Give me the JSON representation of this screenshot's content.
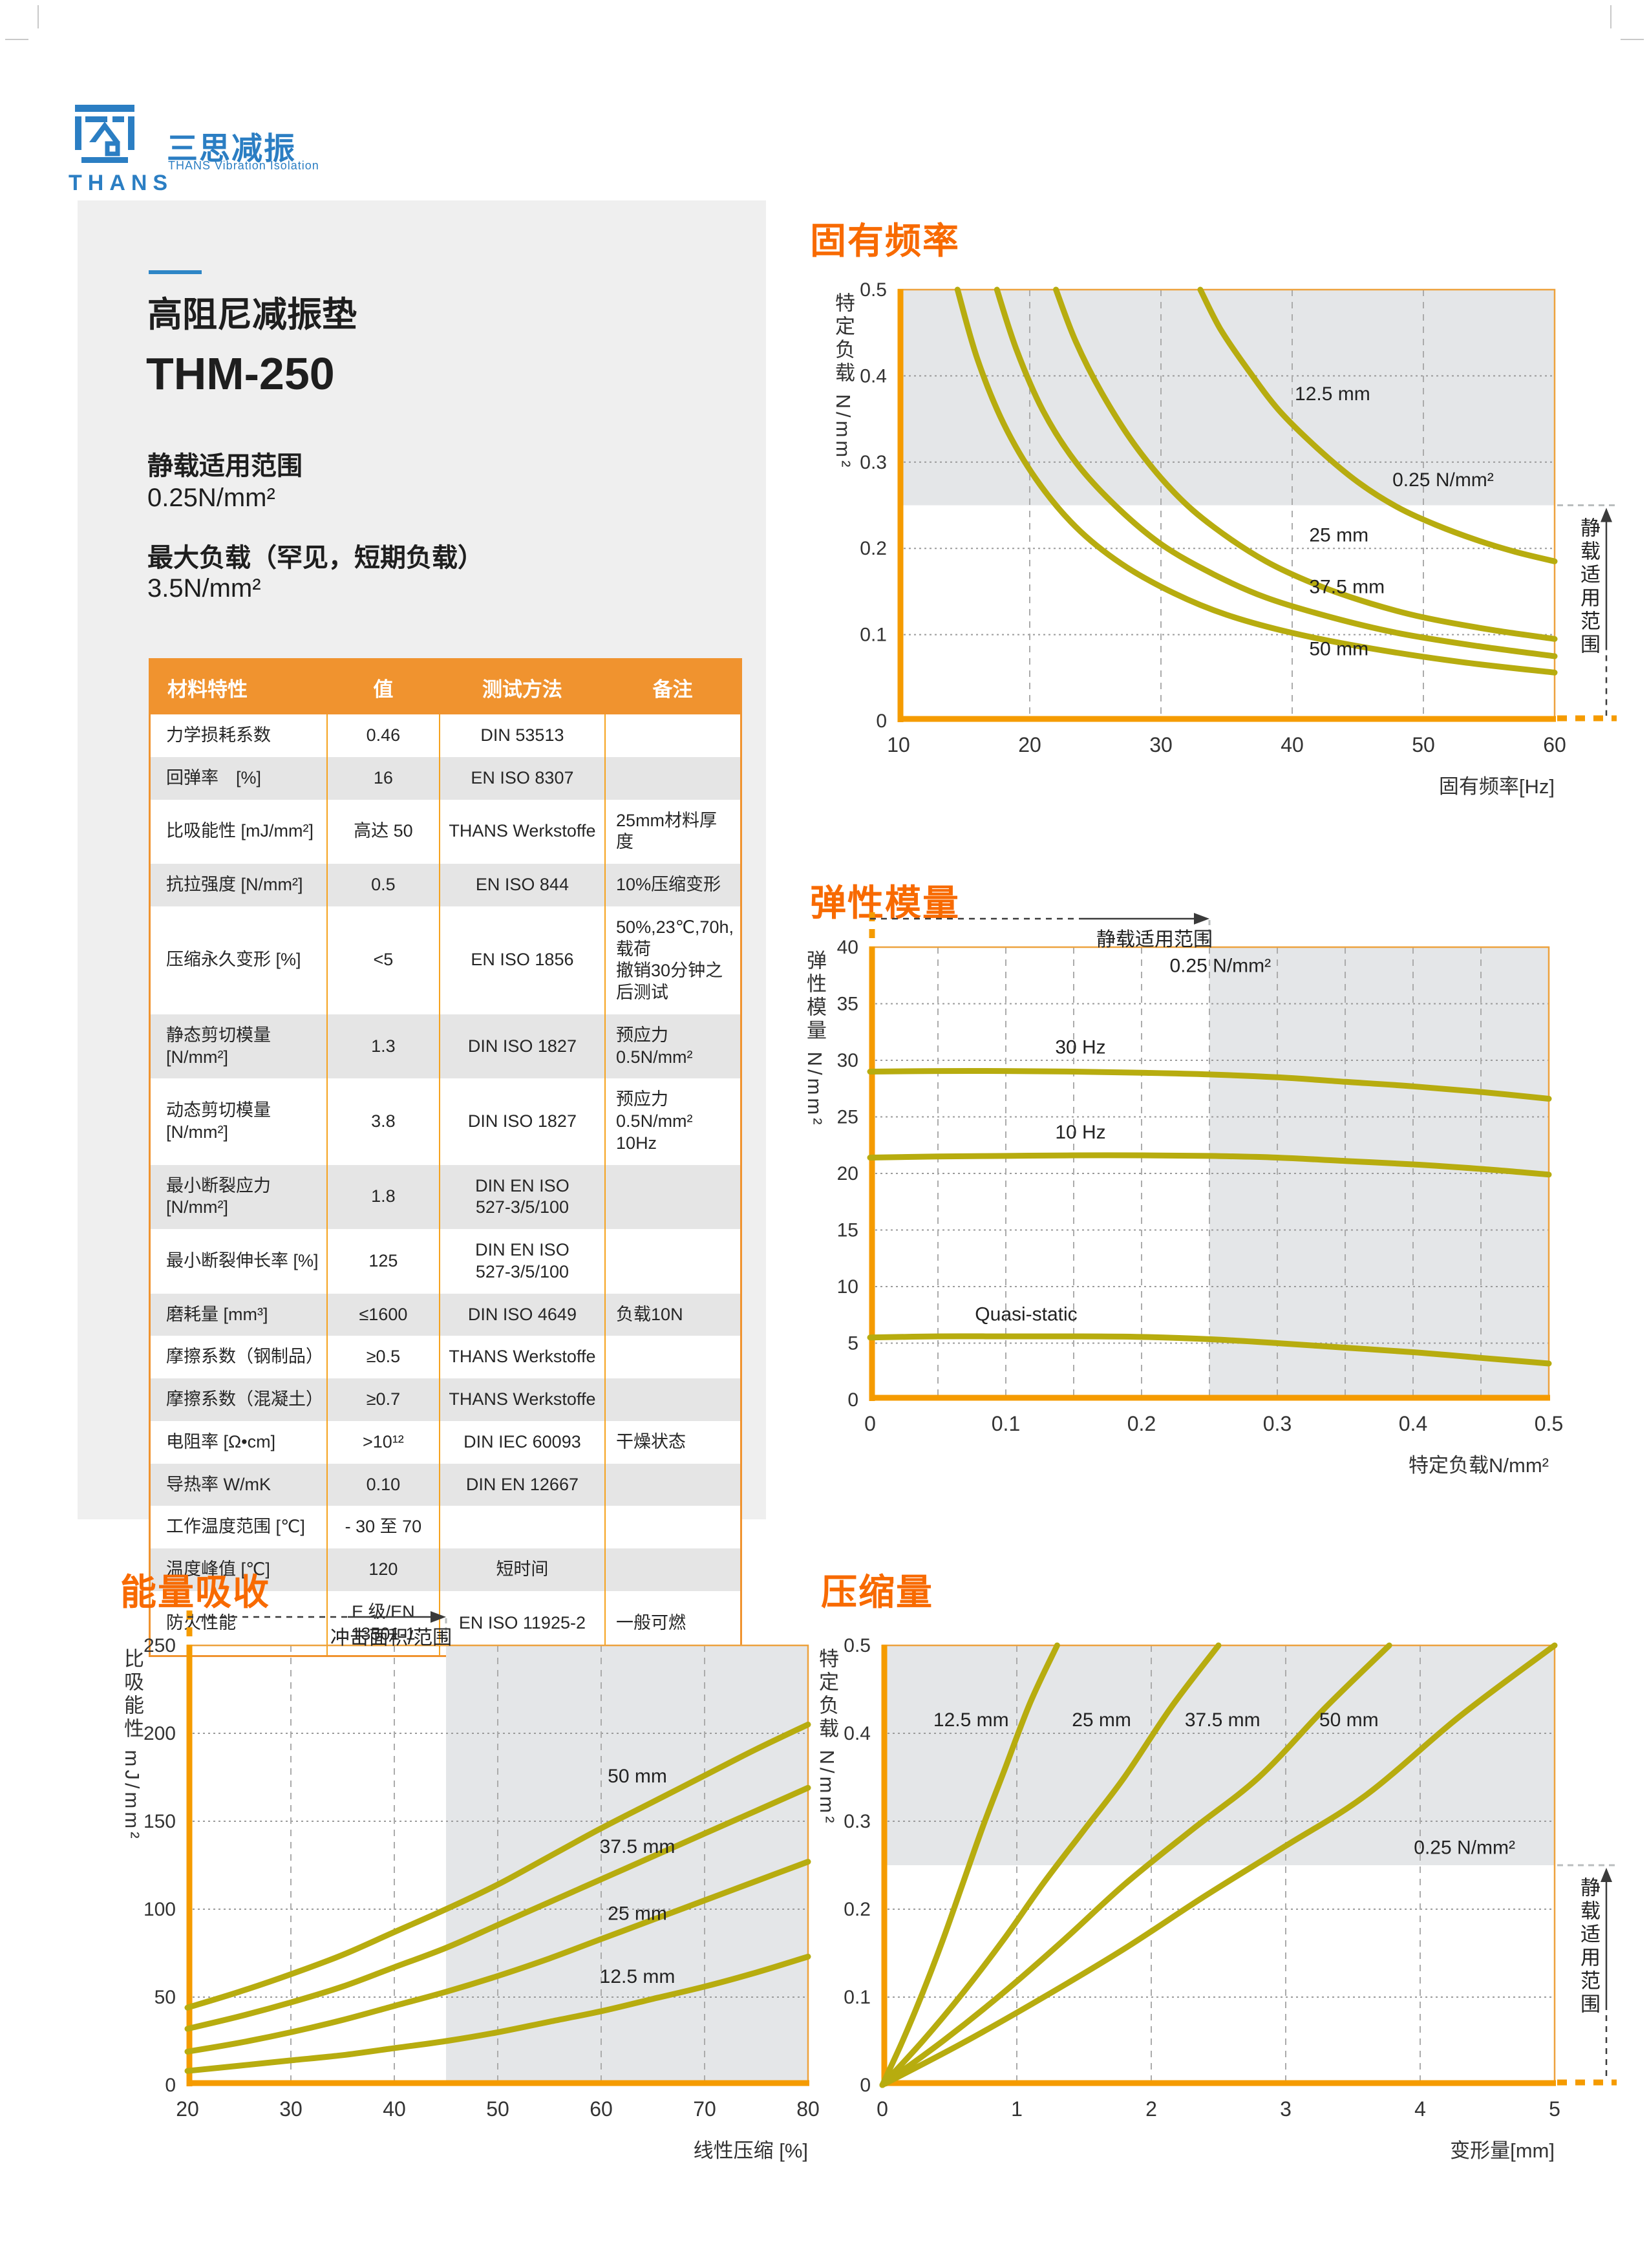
{
  "logo": {
    "brand": "THANS",
    "cn": "三思减振",
    "en": "THANS Vibration Isolation"
  },
  "product": {
    "category": "高阻尼减振垫",
    "model": "THM-250",
    "static_range_label": "静载适用范围",
    "static_range_value": "0.25N/mm²",
    "max_load_label": "最大负载（罕见，短期负载）",
    "max_load_value": "3.5N/mm²"
  },
  "colors": {
    "accent_orange": "#F86A00",
    "table_header_orange": "#F0932F",
    "axis_orange": "#F59B00",
    "curve_olive": "#B7AC0F",
    "shade_gray": "#E4E6E8",
    "logo_blue": "#2B7EC3"
  },
  "table": {
    "headers": [
      "材料特性",
      "值",
      "测试方法",
      "备注"
    ],
    "rows": [
      [
        "力学损耗系数",
        "0.46",
        "DIN 53513",
        ""
      ],
      [
        "回弹率　[%]",
        "16",
        "EN ISO 8307",
        ""
      ],
      [
        "比吸能性 [mJ/mm²]",
        "高达 50",
        "THANS Werkstoffe",
        "25mm材料厚度"
      ],
      [
        "抗拉强度 [N/mm²]",
        "0.5",
        "EN ISO 844",
        "10%压缩变形"
      ],
      [
        "压缩永久变形 [%]",
        "<5",
        "EN ISO 1856",
        "50%,23℃,70h,载荷\n撤销30分钟之后测试"
      ],
      [
        "静态剪切模量 [N/mm²]",
        "1.3",
        "DIN ISO 1827",
        "预应力0.5N/mm²"
      ],
      [
        "动态剪切模量 [N/mm²]",
        "3.8",
        "DIN ISO 1827",
        "预应力0.5N/mm²\n10Hz"
      ],
      [
        "最小断裂应力 [N/mm²]",
        "1.8",
        "DIN EN ISO\n527-3/5/100",
        ""
      ],
      [
        "最小断裂伸长率 [%]",
        "125",
        "DIN EN ISO\n527-3/5/100",
        ""
      ],
      [
        "磨耗量 [mm³]",
        "≤1600",
        "DIN ISO 4649",
        "负载10N"
      ],
      [
        "摩擦系数（钢制品）",
        "≥0.5",
        "THANS Werkstoffe",
        ""
      ],
      [
        "摩擦系数（混凝土）",
        "≥0.7",
        "THANS Werkstoffe",
        ""
      ],
      [
        "电阻率 [Ω•cm]",
        ">10¹²",
        "DIN IEC 60093",
        "干燥状态"
      ],
      [
        "导热率 W/mK",
        "0.10",
        "DIN EN 12667",
        ""
      ],
      [
        "工作温度范围 [℃]",
        "- 30 至 70",
        "",
        ""
      ],
      [
        "温度峰值 [℃]",
        "120",
        "短时间",
        ""
      ],
      [
        "防火性能",
        "E 级/EN\n13501-1",
        "EN ISO 11925-2",
        "一般可燃"
      ]
    ]
  },
  "chart_data": [
    {
      "id": "natural-frequency",
      "type": "line",
      "title": "固有频率",
      "xlabel": "固有频率[Hz]",
      "ylabel": "特定负载 N/mm²",
      "xlim": [
        10,
        60
      ],
      "ylim": [
        0,
        0.5
      ],
      "xticks": [
        10,
        20,
        30,
        40,
        50,
        60
      ],
      "yticks": [
        0,
        0.1,
        0.2,
        0.3,
        0.4,
        0.5
      ],
      "grid_vx": [
        20,
        30,
        40,
        50
      ],
      "grid_hy": [
        0.1,
        0.2,
        0.3,
        0.4
      ],
      "shade": {
        "x0": 10,
        "x1": 60,
        "y0": 0.25,
        "y1": 0.5
      },
      "boundary_label": {
        "text": "0.25 N/mm²",
        "x": 51.5,
        "y": 0.272,
        "anchor": "middle"
      },
      "range_annotation": {
        "side": "right",
        "text": "静载适用范围",
        "from": 0,
        "to": 0.25
      },
      "series": [
        {
          "name": "12.5 mm",
          "label_x": 40.2,
          "label_y": 0.372,
          "label_anchor": "start",
          "points": [
            [
              33,
              0.5
            ],
            [
              34.5,
              0.455
            ],
            [
              36.5,
              0.41
            ],
            [
              39,
              0.36
            ],
            [
              42,
              0.315
            ],
            [
              45,
              0.277
            ],
            [
              48,
              0.248
            ],
            [
              51,
              0.227
            ],
            [
              54,
              0.21
            ],
            [
              57,
              0.196
            ],
            [
              60,
              0.185
            ]
          ]
        },
        {
          "name": "25 mm",
          "label_x": 41.3,
          "label_y": 0.208,
          "label_anchor": "start",
          "points": [
            [
              22,
              0.5
            ],
            [
              23.5,
              0.44
            ],
            [
              25.5,
              0.38
            ],
            [
              28,
              0.32
            ],
            [
              31,
              0.265
            ],
            [
              34,
              0.225
            ],
            [
              38,
              0.185
            ],
            [
              42,
              0.157
            ],
            [
              46,
              0.136
            ],
            [
              50,
              0.12
            ],
            [
              55,
              0.106
            ],
            [
              60,
              0.095
            ]
          ]
        },
        {
          "name": "37.5 mm",
          "label_x": 41.3,
          "label_y": 0.148,
          "label_anchor": "start",
          "points": [
            [
              17.5,
              0.5
            ],
            [
              19,
              0.43
            ],
            [
              21,
              0.36
            ],
            [
              23.5,
              0.3
            ],
            [
              26.5,
              0.25
            ],
            [
              30,
              0.205
            ],
            [
              34,
              0.17
            ],
            [
              38,
              0.143
            ],
            [
              43,
              0.12
            ],
            [
              48,
              0.102
            ],
            [
              54,
              0.087
            ],
            [
              60,
              0.075
            ]
          ]
        },
        {
          "name": "50 mm",
          "label_x": 41.3,
          "label_y": 0.076,
          "label_anchor": "start",
          "points": [
            [
              14.5,
              0.5
            ],
            [
              16,
              0.42
            ],
            [
              18,
              0.345
            ],
            [
              20.5,
              0.28
            ],
            [
              23.5,
              0.225
            ],
            [
              27,
              0.182
            ],
            [
              31,
              0.148
            ],
            [
              35,
              0.123
            ],
            [
              40,
              0.102
            ],
            [
              46,
              0.084
            ],
            [
              53,
              0.068
            ],
            [
              60,
              0.056
            ]
          ]
        }
      ]
    },
    {
      "id": "elastic-modulus",
      "type": "line",
      "title": "弹性模量",
      "xlabel": "特定负载N/mm²",
      "ylabel": "弹性模量 N/mm²",
      "xlim": [
        0,
        0.5
      ],
      "ylim": [
        0,
        40
      ],
      "xticks": [
        0,
        0.1,
        0.2,
        0.3,
        0.4,
        0.5
      ],
      "yticks": [
        0,
        5,
        10,
        15,
        20,
        25,
        30,
        35,
        40
      ],
      "grid_vx": [
        0.05,
        0.1,
        0.15,
        0.2,
        0.25,
        0.3,
        0.35,
        0.4,
        0.45
      ],
      "grid_hy": [
        5,
        10,
        15,
        20,
        25,
        30,
        35
      ],
      "shade": {
        "x0": 0.25,
        "x1": 0.5,
        "y0": 0,
        "y1": 40
      },
      "boundary_label": {
        "text": "0.25 N/mm²",
        "x": 0.258,
        "y": 37.8,
        "anchor": "middle"
      },
      "range_annotation": {
        "side": "top",
        "text": "静载适用范围",
        "from": 0,
        "to": 0.25
      },
      "series": [
        {
          "name": "30 Hz",
          "label_x": 0.155,
          "label_y": 30.6,
          "label_anchor": "middle",
          "points": [
            [
              0,
              29
            ],
            [
              0.05,
              29.05
            ],
            [
              0.1,
              29.05
            ],
            [
              0.15,
              29
            ],
            [
              0.2,
              28.9
            ],
            [
              0.25,
              28.75
            ],
            [
              0.3,
              28.5
            ],
            [
              0.35,
              28.1
            ],
            [
              0.4,
              27.7
            ],
            [
              0.45,
              27.2
            ],
            [
              0.5,
              26.6
            ]
          ]
        },
        {
          "name": "10 Hz",
          "label_x": 0.155,
          "label_y": 23.1,
          "label_anchor": "middle",
          "points": [
            [
              0,
              21.4
            ],
            [
              0.05,
              21.5
            ],
            [
              0.1,
              21.55
            ],
            [
              0.15,
              21.6
            ],
            [
              0.2,
              21.6
            ],
            [
              0.25,
              21.55
            ],
            [
              0.3,
              21.4
            ],
            [
              0.35,
              21.1
            ],
            [
              0.4,
              20.8
            ],
            [
              0.45,
              20.4
            ],
            [
              0.5,
              19.9
            ]
          ]
        },
        {
          "name": "Quasi-static",
          "label_x": 0.115,
          "label_y": 7.0,
          "label_anchor": "middle",
          "points": [
            [
              0,
              5.5
            ],
            [
              0.05,
              5.6
            ],
            [
              0.1,
              5.6
            ],
            [
              0.15,
              5.6
            ],
            [
              0.2,
              5.55
            ],
            [
              0.25,
              5.35
            ],
            [
              0.3,
              5.0
            ],
            [
              0.35,
              4.6
            ],
            [
              0.4,
              4.2
            ],
            [
              0.45,
              3.7
            ],
            [
              0.5,
              3.2
            ]
          ]
        }
      ]
    },
    {
      "id": "energy-absorption",
      "type": "line",
      "title": "能量吸收",
      "xlabel": "线性压缩 [%]",
      "ylabel": "比吸能性 mJ/mm²",
      "xlim": [
        20,
        80
      ],
      "ylim": [
        0,
        250
      ],
      "xticks": [
        20,
        30,
        40,
        50,
        60,
        70,
        80
      ],
      "yticks": [
        0,
        50,
        100,
        150,
        200,
        250
      ],
      "grid_vx": [
        30,
        40,
        50,
        60,
        70
      ],
      "grid_hy": [
        50,
        100,
        150,
        200
      ],
      "shade": {
        "x0": 45,
        "x1": 80,
        "y0": 0,
        "y1": 250
      },
      "range_annotation": {
        "side": "top",
        "text": "冲击面积/范围",
        "from": 20,
        "to": 45
      },
      "series": [
        {
          "name": "50 mm",
          "label_x": 63.5,
          "label_y": 172,
          "label_anchor": "middle",
          "points": [
            [
              20,
              44
            ],
            [
              25,
              53
            ],
            [
              30,
              63
            ],
            [
              35,
              74
            ],
            [
              40,
              87
            ],
            [
              45,
              100
            ],
            [
              50,
              114
            ],
            [
              55,
              130
            ],
            [
              60,
              146
            ],
            [
              65,
              161
            ],
            [
              70,
              176
            ],
            [
              75,
              191
            ],
            [
              80,
              205
            ]
          ]
        },
        {
          "name": "37.5 mm",
          "label_x": 63.5,
          "label_y": 132,
          "label_anchor": "middle",
          "points": [
            [
              20,
              32
            ],
            [
              25,
              39
            ],
            [
              30,
              47
            ],
            [
              35,
              56
            ],
            [
              40,
              67
            ],
            [
              45,
              78
            ],
            [
              50,
              91
            ],
            [
              55,
              104
            ],
            [
              60,
              117
            ],
            [
              65,
              130
            ],
            [
              70,
              143
            ],
            [
              75,
              156
            ],
            [
              80,
              169
            ]
          ]
        },
        {
          "name": "25 mm",
          "label_x": 63.5,
          "label_y": 94,
          "label_anchor": "middle",
          "points": [
            [
              20,
              19
            ],
            [
              25,
              24
            ],
            [
              30,
              30
            ],
            [
              35,
              37
            ],
            [
              40,
              45
            ],
            [
              45,
              53
            ],
            [
              50,
              62
            ],
            [
              55,
              72
            ],
            [
              60,
              83
            ],
            [
              65,
              94
            ],
            [
              70,
              105
            ],
            [
              75,
              116
            ],
            [
              80,
              127
            ]
          ]
        },
        {
          "name": "12.5 mm",
          "label_x": 63.5,
          "label_y": 58,
          "label_anchor": "middle",
          "points": [
            [
              20,
              8
            ],
            [
              25,
              11
            ],
            [
              30,
              14
            ],
            [
              35,
              17
            ],
            [
              40,
              21
            ],
            [
              45,
              25
            ],
            [
              50,
              30
            ],
            [
              55,
              36
            ],
            [
              60,
              42
            ],
            [
              65,
              49
            ],
            [
              70,
              56
            ],
            [
              75,
              64
            ],
            [
              80,
              73
            ]
          ]
        }
      ]
    },
    {
      "id": "compression",
      "type": "line",
      "title": "压缩量",
      "xlabel": "变形量[mm]",
      "ylabel": "特定负载 N/mm²",
      "xlim": [
        0,
        5
      ],
      "ylim": [
        0,
        0.5
      ],
      "xticks": [
        0,
        1,
        2,
        3,
        4,
        5
      ],
      "yticks": [
        0,
        0.1,
        0.2,
        0.3,
        0.4,
        0.5
      ],
      "grid_vx": [
        1,
        2,
        3,
        4
      ],
      "grid_hy": [
        0.1,
        0.2,
        0.3,
        0.4
      ],
      "shade": {
        "x0": 0,
        "x1": 5,
        "y0": 0.25,
        "y1": 0.5
      },
      "boundary_label": {
        "text": "0.25 N/mm²",
        "x": 4.33,
        "y": 0.263,
        "anchor": "middle"
      },
      "range_annotation": {
        "side": "right",
        "text": "静载适用范围",
        "from": 0,
        "to": 0.25
      },
      "series": [
        {
          "name": "12.5 mm",
          "label_x": 0.66,
          "label_y": 0.408,
          "label_anchor": "middle",
          "points": [
            [
              0,
              0
            ],
            [
              0.15,
              0.05
            ],
            [
              0.3,
              0.105
            ],
            [
              0.45,
              0.165
            ],
            [
              0.6,
              0.23
            ],
            [
              0.75,
              0.295
            ],
            [
              0.9,
              0.355
            ],
            [
              1.1,
              0.435
            ],
            [
              1.3,
              0.5
            ]
          ]
        },
        {
          "name": "25 mm",
          "label_x": 1.63,
          "label_y": 0.408,
          "label_anchor": "middle",
          "points": [
            [
              0,
              0
            ],
            [
              0.3,
              0.05
            ],
            [
              0.6,
              0.105
            ],
            [
              0.9,
              0.165
            ],
            [
              1.2,
              0.23
            ],
            [
              1.5,
              0.29
            ],
            [
              1.8,
              0.35
            ],
            [
              2.15,
              0.43
            ],
            [
              2.5,
              0.5
            ]
          ]
        },
        {
          "name": "37.5 mm",
          "label_x": 2.53,
          "label_y": 0.408,
          "label_anchor": "middle",
          "points": [
            [
              0,
              0
            ],
            [
              0.45,
              0.05
            ],
            [
              0.9,
              0.105
            ],
            [
              1.35,
              0.165
            ],
            [
              1.8,
              0.228
            ],
            [
              2.3,
              0.29
            ],
            [
              2.8,
              0.35
            ],
            [
              3.3,
              0.43
            ],
            [
              3.77,
              0.5
            ]
          ]
        },
        {
          "name": "50 mm",
          "label_x": 3.47,
          "label_y": 0.408,
          "label_anchor": "middle",
          "points": [
            [
              0,
              0
            ],
            [
              0.6,
              0.048
            ],
            [
              1.2,
              0.1
            ],
            [
              1.8,
              0.155
            ],
            [
              2.4,
              0.215
            ],
            [
              3.0,
              0.272
            ],
            [
              3.6,
              0.33
            ],
            [
              4.3,
              0.42
            ],
            [
              5.0,
              0.5
            ]
          ]
        }
      ]
    }
  ]
}
